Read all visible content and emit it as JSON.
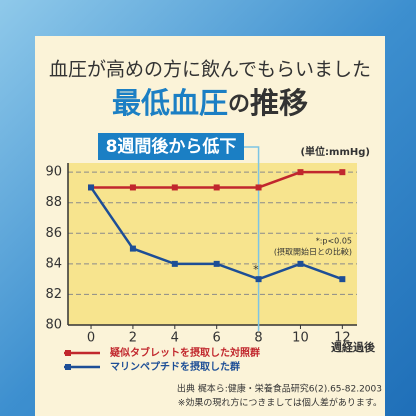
{
  "chart_data": {
    "type": "line",
    "subtitle": "血圧が高めの方に飲んでもらいました",
    "title_parts": [
      "最低血圧",
      "の",
      "推移"
    ],
    "badge": "8週間後から低下",
    "unit": "(単位:mmHg)",
    "x_label": "週経過後",
    "x": [
      0,
      2,
      4,
      6,
      8,
      10,
      12
    ],
    "xlim": [
      -1.1,
      12.7
    ],
    "xticks": [
      0,
      2,
      4,
      6,
      8,
      10,
      12
    ],
    "ylim": [
      80,
      90.6
    ],
    "yticks": [
      80,
      82,
      84,
      86,
      88,
      90
    ],
    "grid": true,
    "series": [
      {
        "name": "疑似タブレットを摂取した対照群",
        "color": "#c1272d",
        "values": [
          89,
          89,
          89,
          89,
          89,
          90,
          90
        ]
      },
      {
        "name": "マリンペプチドを摂取した群",
        "color": "#1d4e96",
        "values": [
          89,
          85,
          84,
          84,
          83,
          84,
          83
        ]
      }
    ],
    "annotations": [
      {
        "text": "*",
        "x": 8,
        "y": 83.6
      }
    ],
    "notes": [
      "*:p<0.05",
      "(摂取開始日との比較)"
    ],
    "footnotes": [
      "出典 梶本ら:健康・栄養食品研究6(2).65-82.2003",
      "※効果の現れ方につきましては個人差があります。"
    ]
  }
}
